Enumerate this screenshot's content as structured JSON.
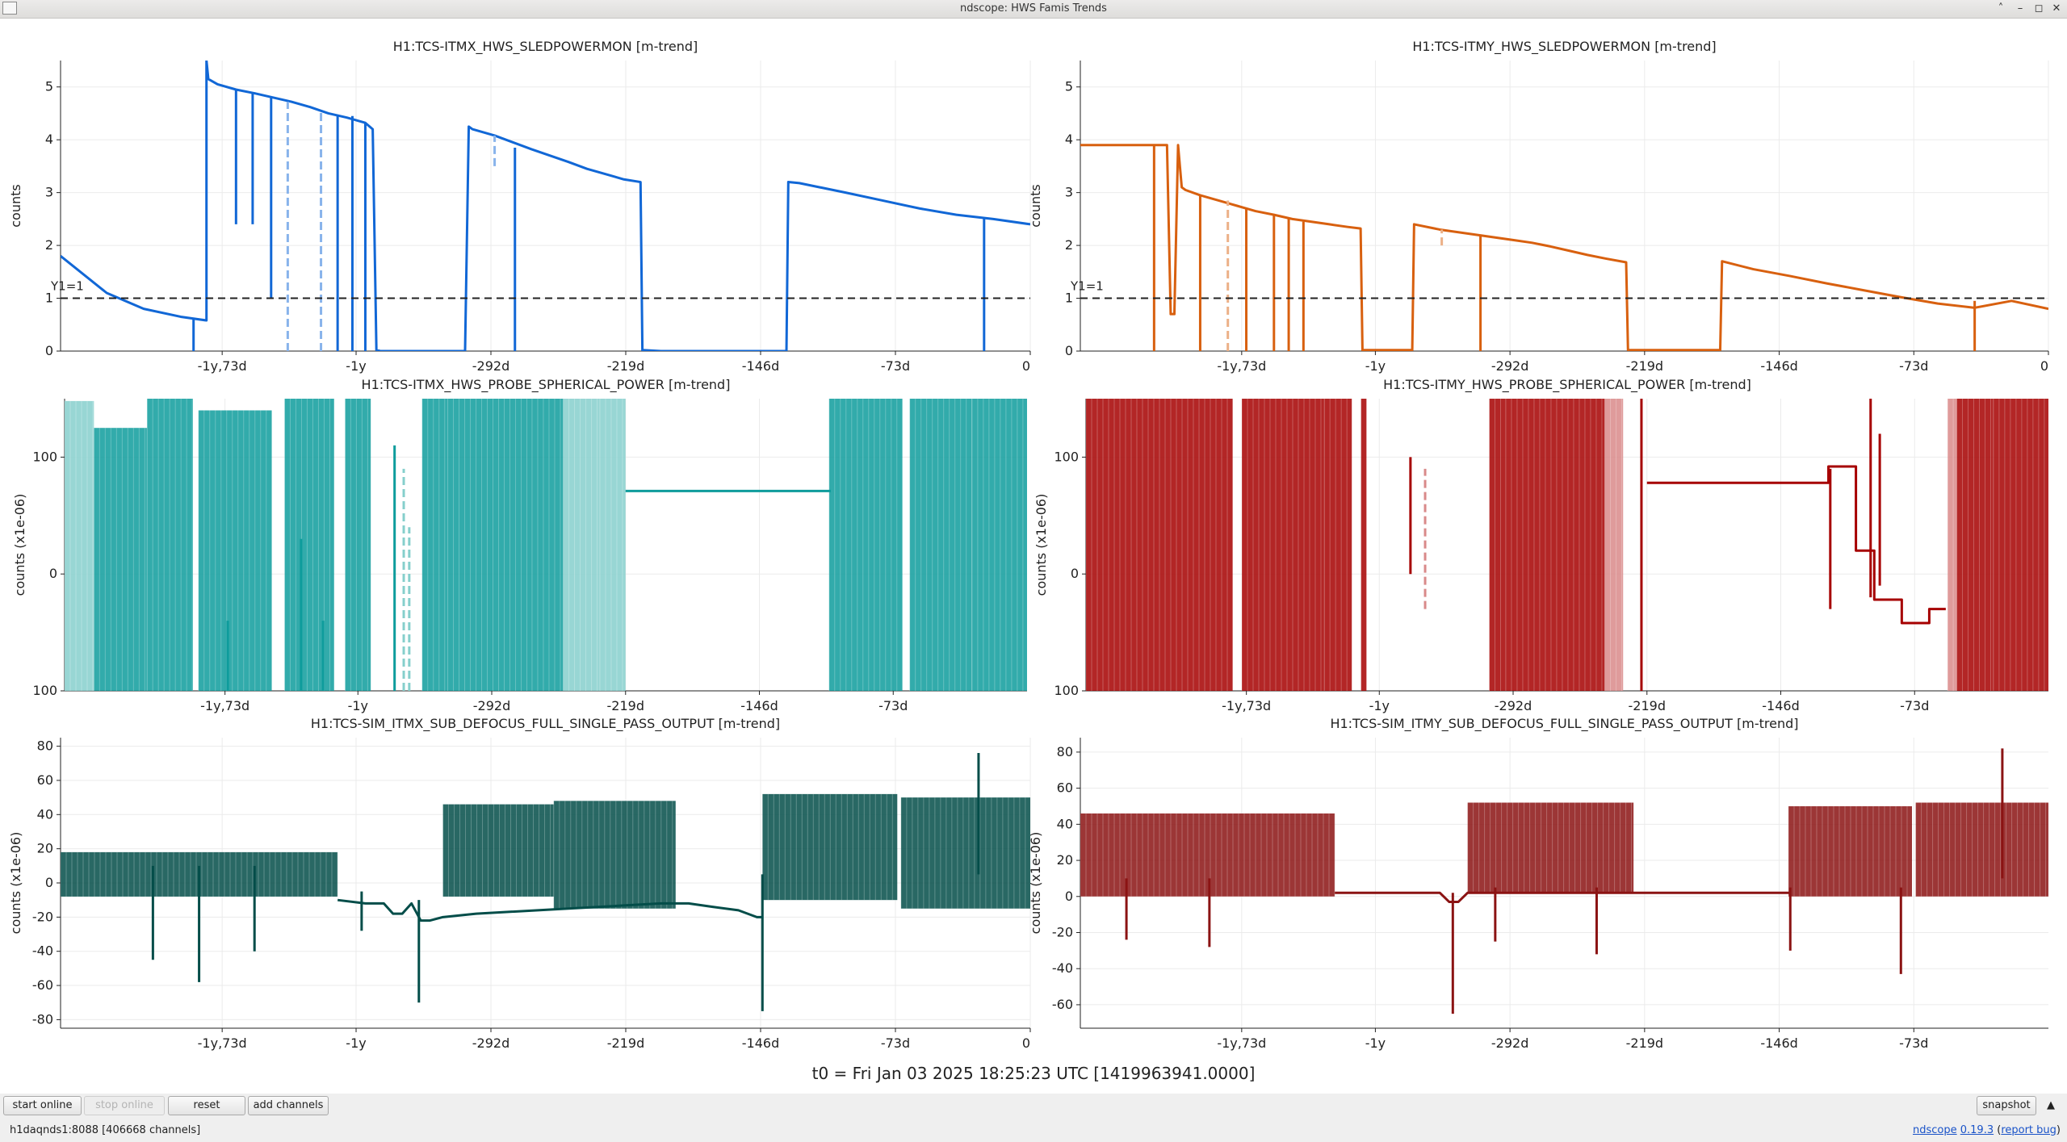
{
  "window": {
    "title": "ndscope: HWS Famis Trends",
    "controls": [
      "up-arrow-icon",
      "minimize-icon",
      "maximize-icon",
      "close-icon"
    ]
  },
  "chart_data": [
    {
      "type": "line",
      "title": "H1:TCS-ITMX_HWS_SLEDPOWERMON [m-trend]",
      "ylabel": "counts",
      "color": "#1167d6",
      "ylim": [
        0,
        5.5
      ],
      "yticks": [
        "0",
        "1",
        "2",
        "3",
        "4",
        "5"
      ],
      "xticks": [
        "-1y,73d",
        "-1y",
        "-292d",
        "-219d",
        "-146d",
        "-73d",
        "0"
      ],
      "xlim": [
        -525,
        0
      ],
      "hline": {
        "y": 1,
        "label": "Y1=1",
        "style": "dashed"
      },
      "series": [
        {
          "x": [
            -525,
            -500,
            -480,
            -460,
            -446,
            -446,
            -445,
            -440,
            -430,
            -420,
            -410,
            -400,
            -390,
            -380,
            -370,
            -360,
            -356,
            -354,
            -352,
            -350,
            -345,
            -340,
            -335,
            -330,
            -325,
            -320,
            -315,
            -310,
            -306,
            -304,
            -302,
            -290,
            -280,
            -270,
            -260,
            -250,
            -240,
            -230,
            -220,
            -211,
            -210,
            -200,
            -180,
            -160,
            -140,
            -132,
            -131,
            -125,
            -100,
            -80,
            -60,
            -40,
            -20,
            0
          ],
          "y": [
            1.8,
            1.1,
            0.8,
            0.65,
            0.58,
            5.5,
            5.15,
            5.05,
            4.95,
            4.88,
            4.8,
            4.72,
            4.62,
            4.5,
            4.42,
            4.32,
            4.2,
            0.02,
            0,
            0,
            0,
            0,
            0,
            0,
            0,
            0,
            0,
            0,
            0,
            4.25,
            4.2,
            4.08,
            3.95,
            3.82,
            3.7,
            3.58,
            3.45,
            3.35,
            3.25,
            3.2,
            0.02,
            0,
            0,
            0,
            0,
            0,
            3.2,
            3.18,
            3.0,
            2.85,
            2.7,
            2.58,
            2.5,
            2.4
          ]
        }
      ],
      "spikes": [
        {
          "x": -453,
          "ymin": 0,
          "ymax": 0.6,
          "faint": false
        },
        {
          "x": -430,
          "ymin": 2.4,
          "ymax": 4.95,
          "faint": false
        },
        {
          "x": -421,
          "ymin": 2.4,
          "ymax": 4.88,
          "faint": false
        },
        {
          "x": -411,
          "ymin": 1.0,
          "ymax": 4.8,
          "faint": false
        },
        {
          "x": -402,
          "ymin": 0,
          "ymax": 4.72,
          "faint": true
        },
        {
          "x": -384,
          "ymin": 0,
          "ymax": 4.55,
          "faint": true
        },
        {
          "x": -375,
          "ymin": 0,
          "ymax": 4.45,
          "faint": false
        },
        {
          "x": -367,
          "ymin": 0,
          "ymax": 4.45,
          "faint": false
        },
        {
          "x": -360,
          "ymin": 0,
          "ymax": 4.32,
          "faint": false
        },
        {
          "x": -290,
          "ymin": 3.5,
          "ymax": 4.08,
          "faint": true
        },
        {
          "x": -279,
          "ymin": 0,
          "ymax": 3.85,
          "faint": false
        },
        {
          "x": -25,
          "ymin": 0,
          "ymax": 2.52,
          "faint": false
        }
      ]
    },
    {
      "type": "line",
      "title": "H1:TCS-ITMY_HWS_SLEDPOWERMON [m-trend]",
      "ylabel": "counts",
      "color": "#d8600f",
      "ylim": [
        0,
        5.5
      ],
      "yticks": [
        "0",
        "1",
        "2",
        "3",
        "4",
        "5"
      ],
      "xticks": [
        "-1y,73d",
        "-1y",
        "-292d",
        "-219d",
        "-146d",
        "-73d",
        "0"
      ],
      "xlim": [
        -525,
        0
      ],
      "hline": {
        "y": 1,
        "label": "Y1=1",
        "style": "dashed"
      },
      "series": [
        {
          "x": [
            -525,
            -500,
            -478,
            -476,
            -474,
            -472,
            -470,
            -468,
            -460,
            -450,
            -440,
            -430,
            -420,
            -410,
            -400,
            -390,
            -380,
            -373,
            -372,
            -345,
            -344,
            -330,
            -320,
            -310,
            -300,
            -290,
            -280,
            -270,
            -260,
            -250,
            -240,
            -229,
            -228,
            -200,
            -178,
            -177,
            -160,
            -140,
            -120,
            -100,
            -80,
            -60,
            -40,
            -20,
            0
          ],
          "y": [
            3.9,
            3.9,
            3.9,
            0.7,
            0.7,
            3.9,
            3.1,
            3.05,
            2.95,
            2.85,
            2.75,
            2.65,
            2.58,
            2.5,
            2.45,
            2.4,
            2.35,
            2.32,
            0.02,
            0.02,
            2.4,
            2.3,
            2.25,
            2.2,
            2.15,
            2.1,
            2.05,
            1.98,
            1.9,
            1.82,
            1.75,
            1.68,
            0.02,
            0.02,
            0.02,
            1.7,
            1.55,
            1.42,
            1.28,
            1.15,
            1.02,
            0.9,
            0.82,
            0.95,
            0.8
          ]
        }
      ],
      "spikes": [
        {
          "x": -485,
          "ymin": 0,
          "ymax": 3.9,
          "faint": false
        },
        {
          "x": -460,
          "ymin": 0,
          "ymax": 2.95,
          "faint": false
        },
        {
          "x": -445,
          "ymin": 0,
          "ymax": 2.85,
          "faint": true
        },
        {
          "x": -435,
          "ymin": 0,
          "ymax": 2.7,
          "faint": false
        },
        {
          "x": -420,
          "ymin": 0,
          "ymax": 2.58,
          "faint": false
        },
        {
          "x": -412,
          "ymin": 0,
          "ymax": 2.5,
          "faint": false
        },
        {
          "x": -404,
          "ymin": 0,
          "ymax": 2.45,
          "faint": false
        },
        {
          "x": -329,
          "ymin": 2.0,
          "ymax": 2.3,
          "faint": true
        },
        {
          "x": -308,
          "ymin": 0,
          "ymax": 2.2,
          "faint": false
        },
        {
          "x": -40,
          "ymin": 0,
          "ymax": 0.95,
          "faint": false
        }
      ]
    },
    {
      "type": "line",
      "title": "H1:TCS-ITMX_HWS_PROBE_SPHERICAL_POWER [m-trend]",
      "ylabel": "counts (x1e-06)",
      "color": "#0e9c9c",
      "fill_color": "#86cfcc",
      "ylim": [
        -100,
        150
      ],
      "yticks": [
        "100",
        "0",
        "100"
      ],
      "xticks": [
        "-1y,73d",
        "-1y",
        "-292d",
        "-219d",
        "-146d",
        "-73d"
      ],
      "xlim": [
        -525,
        0
      ],
      "bands": [
        {
          "x0": -525,
          "x1": -509,
          "ymin": -100,
          "ymax": 148,
          "faint": true
        },
        {
          "x0": -509,
          "x1": -480,
          "ymin": -100,
          "ymax": 125,
          "faint": false
        },
        {
          "x0": -480,
          "x1": -455,
          "ymin": -100,
          "ymax": 150,
          "faint": false
        },
        {
          "x0": -452,
          "x1": -412,
          "ymin": -100,
          "ymax": 140,
          "faint": false
        },
        {
          "x0": -405,
          "x1": -378,
          "ymin": -100,
          "ymax": 150,
          "faint": false
        },
        {
          "x0": -372,
          "x1": -358,
          "ymin": -100,
          "ymax": 150,
          "faint": false
        },
        {
          "x0": -330,
          "x1": -316,
          "ymin": -100,
          "ymax": 150,
          "faint": false
        },
        {
          "x0": -316,
          "x1": -270,
          "ymin": -100,
          "ymax": 150,
          "faint": false
        },
        {
          "x0": -270,
          "x1": -253,
          "ymin": -100,
          "ymax": 150,
          "faint": false
        },
        {
          "x0": -253,
          "x1": -233,
          "ymin": -100,
          "ymax": 150,
          "faint": true
        },
        {
          "x0": -233,
          "x1": -219,
          "ymin": -100,
          "ymax": 150,
          "faint": true
        },
        {
          "x0": -108,
          "x1": -68,
          "ymin": -100,
          "ymax": 150,
          "faint": false
        },
        {
          "x0": -64,
          "x1": -30,
          "ymin": -100,
          "ymax": 150,
          "faint": false
        },
        {
          "x0": -30,
          "x1": 0,
          "ymin": -100,
          "ymax": 150,
          "faint": false
        }
      ],
      "series": [
        {
          "x": [
            -219,
            -107
          ],
          "y": [
            71,
            71
          ]
        }
      ],
      "spikes": [
        {
          "x": -436,
          "ymin": -100,
          "ymax": -40,
          "faint": false
        },
        {
          "x": -396,
          "ymin": -100,
          "ymax": 30,
          "faint": false
        },
        {
          "x": -384,
          "ymin": -100,
          "ymax": -40,
          "faint": false
        },
        {
          "x": -345,
          "ymin": -100,
          "ymax": 110,
          "faint": false
        },
        {
          "x": -340,
          "ymin": -100,
          "ymax": 90,
          "faint": true
        },
        {
          "x": -337,
          "ymin": -100,
          "ymax": 40,
          "faint": true
        }
      ]
    },
    {
      "type": "line",
      "title": "H1:TCS-ITMY_HWS_PROBE_SPHERICAL_POWER [m-trend]",
      "ylabel": "counts (x1e-06)",
      "color": "#a60000",
      "fill_color": "#d98a8a",
      "ylim": [
        -100,
        150
      ],
      "yticks": [
        "100",
        "0",
        "100"
      ],
      "xticks": [
        "-1y,73d",
        "-1y",
        "-292d",
        "-219d",
        "-146d",
        "-73d"
      ],
      "xlim": [
        -525,
        0
      ],
      "bands": [
        {
          "x0": -525,
          "x1": -445,
          "ymin": -100,
          "ymax": 150,
          "faint": false
        },
        {
          "x0": -440,
          "x1": -395,
          "ymin": -100,
          "ymax": 150,
          "faint": false
        },
        {
          "x0": -395,
          "x1": -380,
          "ymin": -100,
          "ymax": 150,
          "faint": false
        },
        {
          "x0": -375,
          "x1": -372,
          "ymin": -100,
          "ymax": 150,
          "faint": false
        },
        {
          "x0": -305,
          "x1": -296,
          "ymin": -100,
          "ymax": 150,
          "faint": false
        },
        {
          "x0": -296,
          "x1": -242,
          "ymin": -100,
          "ymax": 150,
          "faint": false
        },
        {
          "x0": -242,
          "x1": -232,
          "ymin": -100,
          "ymax": 150,
          "faint": true
        },
        {
          "x0": -55,
          "x1": -50,
          "ymin": -100,
          "ymax": 150,
          "faint": true
        },
        {
          "x0": -50,
          "x1": -30,
          "ymin": -100,
          "ymax": 150,
          "faint": false
        },
        {
          "x0": -30,
          "x1": 0,
          "ymin": -100,
          "ymax": 150,
          "faint": false
        }
      ],
      "series": [
        {
          "x": [
            -219,
            -120,
            -120,
            -105,
            -105,
            -95,
            -95,
            -80,
            -80,
            -65,
            -65,
            -56
          ],
          "y": [
            78,
            78,
            92,
            92,
            20,
            20,
            -22,
            -22,
            -42,
            -42,
            -30,
            -30
          ]
        }
      ],
      "spikes": [
        {
          "x": -348,
          "ymin": 0,
          "ymax": 100,
          "faint": false
        },
        {
          "x": -340,
          "ymin": -30,
          "ymax": 90,
          "faint": true
        },
        {
          "x": -222,
          "ymin": -100,
          "ymax": 150,
          "faint": false
        },
        {
          "x": -119,
          "ymin": -30,
          "ymax": 90,
          "faint": false
        },
        {
          "x": -97,
          "ymin": -20,
          "ymax": 150,
          "faint": false
        },
        {
          "x": -92,
          "ymin": -10,
          "ymax": 120,
          "faint": false
        }
      ]
    },
    {
      "type": "line",
      "title": "H1:TCS-SIM_ITMX_SUB_DEFOCUS_FULL_SINGLE_PASS_OUTPUT [m-trend]",
      "ylabel": "counts (x1e-06)",
      "color": "#034d49",
      "ylim": [
        -85,
        85
      ],
      "yticks": [
        "-80",
        "-60",
        "-40",
        "-20",
        "0",
        "20",
        "40",
        "60",
        "80"
      ],
      "xticks": [
        "-1y,73d",
        "-1y",
        "-292d",
        "-219d",
        "-146d",
        "-73d",
        "0"
      ],
      "xlim": [
        -525,
        0
      ],
      "bands": [
        {
          "x0": -525,
          "x1": -375,
          "ymin": -8,
          "ymax": 18,
          "faint": false
        },
        {
          "x0": -318,
          "x1": -258,
          "ymin": -8,
          "ymax": 46,
          "faint": false
        },
        {
          "x0": -258,
          "x1": -192,
          "ymin": -15,
          "ymax": 48,
          "faint": false
        },
        {
          "x0": -145,
          "x1": -72,
          "ymin": -10,
          "ymax": 52,
          "faint": false
        },
        {
          "x0": -70,
          "x1": 0,
          "ymin": -15,
          "ymax": 50,
          "faint": false
        }
      ],
      "series": [
        {
          "x": [
            -375,
            -360,
            -350,
            -345,
            -340,
            -335,
            -330,
            -325,
            -318,
            -300,
            -250,
            -200,
            -185,
            -172,
            -158,
            -148,
            -145
          ],
          "y": [
            -10,
            -12,
            -12,
            -18,
            -18,
            -12,
            -22,
            -22,
            -20,
            -18,
            -15,
            -12,
            -12,
            -14,
            -16,
            -20,
            -20
          ]
        }
      ],
      "spikes": [
        {
          "x": -475,
          "ymin": -45,
          "ymax": 10,
          "faint": false
        },
        {
          "x": -450,
          "ymin": -58,
          "ymax": 10,
          "faint": false
        },
        {
          "x": -420,
          "ymin": -40,
          "ymax": 10,
          "faint": false
        },
        {
          "x": -362,
          "ymin": -28,
          "ymax": -5,
          "faint": false
        },
        {
          "x": -331,
          "ymin": -70,
          "ymax": -10,
          "faint": false
        },
        {
          "x": -145,
          "ymin": -75,
          "ymax": 5,
          "faint": false
        },
        {
          "x": -28,
          "ymin": 5,
          "ymax": 76,
          "faint": false
        }
      ]
    },
    {
      "type": "line",
      "title": "H1:TCS-SIM_ITMY_SUB_DEFOCUS_FULL_SINGLE_PASS_OUTPUT [m-trend]",
      "ylabel": "counts (x1e-06)",
      "color": "#8b1313",
      "ylim": [
        -73,
        88
      ],
      "yticks": [
        "-60",
        "-40",
        "-20",
        "0",
        "20",
        "40",
        "60",
        "80"
      ],
      "xticks": [
        "-1y,73d",
        "-1y",
        "-292d",
        "-219d",
        "-146d",
        "-73d"
      ],
      "xlim": [
        -525,
        0
      ],
      "bands": [
        {
          "x0": -525,
          "x1": -387,
          "ymin": 0,
          "ymax": 46,
          "faint": false
        },
        {
          "x0": -315,
          "x1": -225,
          "ymin": 2,
          "ymax": 52,
          "faint": false
        },
        {
          "x0": -141,
          "x1": -74,
          "ymin": 0,
          "ymax": 50,
          "faint": false
        },
        {
          "x0": -72,
          "x1": 0,
          "ymin": 0,
          "ymax": 52,
          "faint": false
        }
      ],
      "series": [
        {
          "x": [
            -387,
            -330,
            -325,
            -320,
            -315,
            -225,
            -140
          ],
          "y": [
            2,
            2,
            -3,
            -3,
            2,
            2,
            2
          ]
        }
      ],
      "spikes": [
        {
          "x": -500,
          "ymin": -24,
          "ymax": 10,
          "faint": false
        },
        {
          "x": -455,
          "ymin": -28,
          "ymax": 10,
          "faint": false
        },
        {
          "x": -323,
          "ymin": -65,
          "ymax": 2,
          "faint": false
        },
        {
          "x": -300,
          "ymin": -25,
          "ymax": 5,
          "faint": false
        },
        {
          "x": -245,
          "ymin": -32,
          "ymax": 5,
          "faint": false
        },
        {
          "x": -140,
          "ymin": -30,
          "ymax": 5,
          "faint": false
        },
        {
          "x": -80,
          "ymin": -43,
          "ymax": 5,
          "faint": false
        },
        {
          "x": -25,
          "ymin": 10,
          "ymax": 82,
          "faint": false
        }
      ]
    }
  ],
  "t0_text": "t0 = Fri Jan 03 2025 18:25:23 UTC [1419963941.0000]",
  "toolbar": {
    "start_online": "start online",
    "stop_online": "stop online",
    "reset": "reset",
    "add_channels": "add channels",
    "snapshot": "snapshot",
    "menu_icon": "up-arrow-icon"
  },
  "status": {
    "server": "h1daqnds1:8088  [406668 channels]",
    "app_name": "ndscope",
    "version": "0.19.3",
    "report_bug": "report bug",
    "paren_open": " (",
    "paren_close": ")"
  }
}
